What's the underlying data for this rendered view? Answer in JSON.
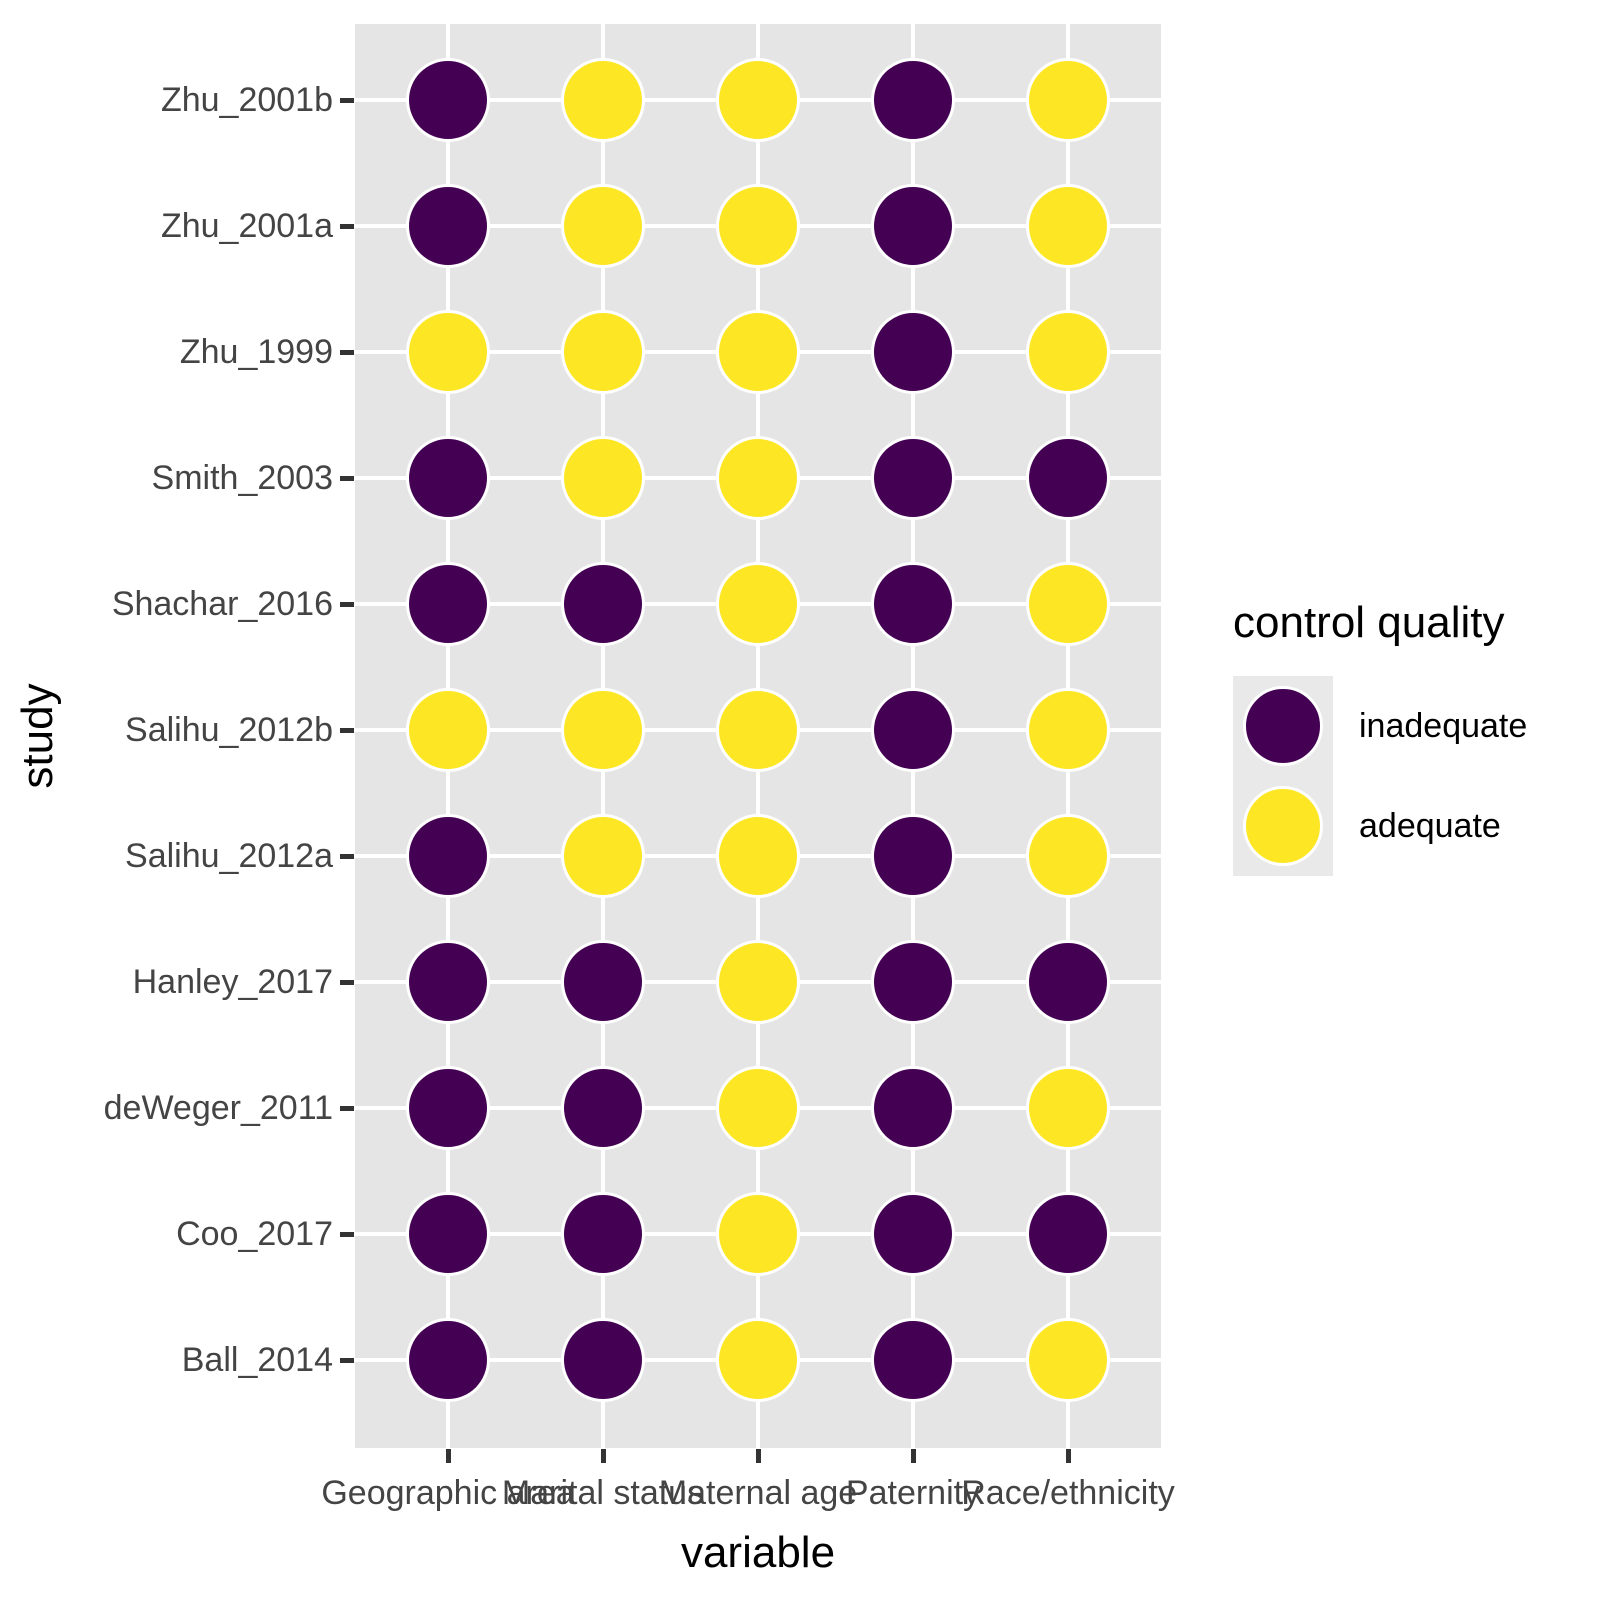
{
  "chart_data": {
    "type": "heatmap",
    "title": "",
    "xlabel": "variable",
    "ylabel": "study",
    "x_categories": [
      "Geographic area",
      "Marital status",
      "Maternal age",
      "Paternity",
      "Race/ethnicity"
    ],
    "y_categories_top_to_bottom": [
      "Zhu_2001b",
      "Zhu_2001a",
      "Zhu_1999",
      "Smith_2003",
      "Shachar_2016",
      "Salihu_2012b",
      "Salihu_2012a",
      "Hanley_2017",
      "deWeger_2011",
      "Coo_2017",
      "Ball_2014"
    ],
    "cells_top_to_bottom": [
      [
        "inadequate",
        "adequate",
        "adequate",
        "inadequate",
        "adequate"
      ],
      [
        "inadequate",
        "adequate",
        "adequate",
        "inadequate",
        "adequate"
      ],
      [
        "adequate",
        "adequate",
        "adequate",
        "inadequate",
        "adequate"
      ],
      [
        "inadequate",
        "adequate",
        "adequate",
        "inadequate",
        "inadequate"
      ],
      [
        "inadequate",
        "inadequate",
        "adequate",
        "inadequate",
        "adequate"
      ],
      [
        "adequate",
        "adequate",
        "adequate",
        "inadequate",
        "adequate"
      ],
      [
        "inadequate",
        "adequate",
        "adequate",
        "inadequate",
        "adequate"
      ],
      [
        "inadequate",
        "inadequate",
        "adequate",
        "inadequate",
        "inadequate"
      ],
      [
        "inadequate",
        "inadequate",
        "adequate",
        "inadequate",
        "adequate"
      ],
      [
        "inadequate",
        "inadequate",
        "adequate",
        "inadequate",
        "inadequate"
      ],
      [
        "inadequate",
        "inadequate",
        "adequate",
        "inadequate",
        "adequate"
      ]
    ],
    "legend": {
      "title": "control quality",
      "position": "right",
      "entries": [
        {
          "label": "inadequate",
          "color": "#440154"
        },
        {
          "label": "adequate",
          "color": "#FDE725"
        }
      ]
    },
    "colors": {
      "inadequate": "#440154",
      "adequate": "#FDE725"
    },
    "grid": true,
    "panel_background": "#E5E5E5",
    "grid_color": "#FFFFFF",
    "axis_text_color": "#444444",
    "tick_color": "#333333"
  }
}
